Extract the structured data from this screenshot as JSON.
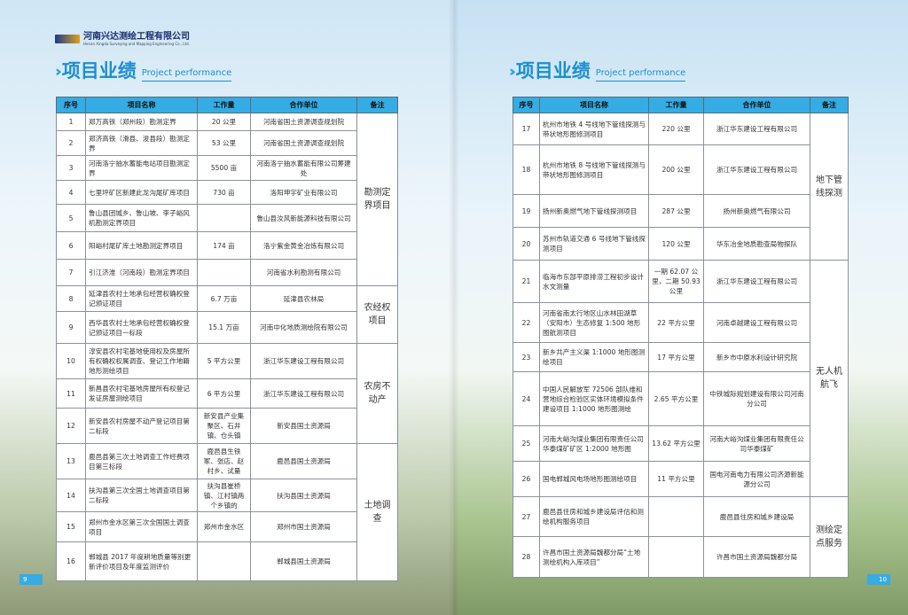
{
  "company": {
    "name_cn": "河南兴达测绘工程有限公司",
    "name_en": "Henan Xingda Surveying and Mapping Engineering Co., Ltd."
  },
  "section": {
    "title_cn": "项目业绩",
    "title_en": "Project performance"
  },
  "headers": [
    "序号",
    "项目名称",
    "工作量",
    "合作单位",
    "备注"
  ],
  "colors": {
    "accent": "#1c8fd0",
    "header_bg": "#35ace3"
  },
  "left": {
    "page_number": "9",
    "rows": [
      {
        "no": "1",
        "name": "郑万高铁（郑州段）勘测定界",
        "work": "20 公里",
        "partner": "河南省国土资源调查规划院"
      },
      {
        "no": "2",
        "name": "郑济高铁（滑县、浚县段）勘测定界",
        "work": "53 公里",
        "partner": "河南省国土资源调查规划院"
      },
      {
        "no": "3",
        "name": "河南洛宁抽水蓄能电站项目勘测定界",
        "work": "5500 亩",
        "partner": "河南洛宁抽水蓄能有限公司筹建处"
      },
      {
        "no": "4",
        "name": "七里坪矿区新建此龙沟尾矿库项目",
        "work": "730 亩",
        "partner": "洛阳坤宇矿业有限公司"
      },
      {
        "no": "5",
        "name": "鲁山县团城乡、鲁山坡、李子峪风机勘测定界项目",
        "work": "",
        "partner": "鲁山县汝风新能源科技有限公司"
      },
      {
        "no": "6",
        "name": "阳峪村尾矿库土地勘测定界项目",
        "work": "174 亩",
        "partner": "洛宁紫金黄金冶炼有限公司"
      },
      {
        "no": "7",
        "name": "引江济淮（河南段）勘测定界项目",
        "work": "",
        "partner": "河南省水利勘测有限公司"
      },
      {
        "no": "8",
        "name": "延津县农村土地承包经营权确权登记颁证项目",
        "work": "6.7 万亩",
        "partner": "延津县农林局"
      },
      {
        "no": "9",
        "name": "西华县农村土地承包经营权确权登记颁证项目一标段",
        "work": "15.1 万亩",
        "partner": "河南中化地质测绘院有限公司"
      },
      {
        "no": "10",
        "name": "淳安县农村宅基地使用权及房屋所有权确权权属调查、登记工作地籍地形测绘项目",
        "work": "5 平方公里",
        "partner": "浙江华东建设工程有限公司"
      },
      {
        "no": "11",
        "name": "新昌县农村宅基地房屋所有权登记发证房屋测绘项目",
        "work": "6 平方公里",
        "partner": "浙江华东建设工程有限公司"
      },
      {
        "no": "12",
        "name": "新安县农村房屋不动产登记项目第二标段",
        "work": "新安县产业集聚区、石井镇、仓头镇",
        "partner": "新安县国土资源局"
      },
      {
        "no": "13",
        "name": "鹿邑县第三次土地调查工作经费项目第三标段",
        "work": "鹿邑县生铁冢、张店、赵村乡、试量",
        "partner": "鹿邑县国土资源局"
      },
      {
        "no": "14",
        "name": "扶沟县第三次全国土地调查项目第二标段",
        "work": "扶沟县崔桥镇、江村镇两个乡镇的",
        "partner": "扶沟县国土资源局"
      },
      {
        "no": "15",
        "name": "郑州市金水区第三次全国国土调查项目",
        "work": "郑州市金水区",
        "partner": "郑州市国土资源局"
      },
      {
        "no": "16",
        "name": "郸城县 2017 年度耕地质量等别更新评价项目及年度监测评价",
        "work": "",
        "partner": "郸城县国土资源局"
      }
    ],
    "remarks": [
      {
        "label": "勘测定界项目",
        "span": 7
      },
      {
        "label": "农经权项目",
        "span": 2
      },
      {
        "label": "农房不动产",
        "span": 3
      },
      {
        "label": "土地调查",
        "span": 4
      }
    ]
  },
  "right": {
    "page_number": "10",
    "rows": [
      {
        "no": "17",
        "name": "杭州市地铁 4 号线地下管线探测与带状地形图修测项目",
        "work": "220 公里",
        "partner": "浙江华东建设工程有限公司"
      },
      {
        "no": "18",
        "name": "杭州市地铁 8 号线地下管线探测与带状地形图修测项目",
        "work": "200 公里",
        "partner": "浙江华东建设工程有限公司"
      },
      {
        "no": "19",
        "name": "扬州新奥燃气地下管线探测项目",
        "work": "287 公里",
        "partner": "扬州新奥燃气有限公司"
      },
      {
        "no": "20",
        "name": "苏州市轨道交通 6 号线地下管线探测项目",
        "work": "120 公里",
        "partner": "华东冶金地质勘查局物探队"
      },
      {
        "no": "21",
        "name": "临海市东部平原排涝工程初步设计水文测量",
        "work": "一期 62.07 公里，二期 50.93 公里",
        "partner": "浙江华东建设工程有限公司"
      },
      {
        "no": "22",
        "name": "河南省南太行地区山水林田湖草（安阳市）生态修复 1:500 地形图航测项目",
        "work": "22 平方公里",
        "partner": "河南卓越建设工程有限公司"
      },
      {
        "no": "23",
        "name": "新乡共产主义渠 1:1000 地形图测绘项目",
        "work": "17 平方公里",
        "partner": "新乡市中原水利设计研究院"
      },
      {
        "no": "24",
        "name": "中国人民解放军 72506 部队维和营地综合检验区实体环境模拟条件建设项目 1:1000 地形图测绘",
        "work": "2.65 平方公里",
        "partner": "中铁城际规划建设有限公司河南分公司"
      },
      {
        "no": "25",
        "name": "河南大峪沟煤业集团有限责任公司华泰煤矿矿区 1:2000 地形图",
        "work": "13.62 平方公里",
        "partner": "河南大峪沟煤业集团有限责任公司华泰煤矿"
      },
      {
        "no": "26",
        "name": "国电郸城风电场地形图测绘项目",
        "work": "11 平方公里",
        "partner": "国电河南电力有限公司济源新能源分公司"
      },
      {
        "no": "27",
        "name": "鹿邑县住房和城乡建设局评估和测绘机构服务项目",
        "work": "",
        "partner": "鹿邑县住房和城乡建设局"
      },
      {
        "no": "28",
        "name": "许昌市国土资源局魏都分局“土地测绘机构入库项目”",
        "work": "",
        "partner": "许昌市国土资源局魏都分局"
      }
    ],
    "remarks": [
      {
        "label": "地下管线探测",
        "span": 4
      },
      {
        "label": "无人机航飞",
        "span": 6
      },
      {
        "label": "测绘定点服务",
        "span": 2
      }
    ]
  }
}
